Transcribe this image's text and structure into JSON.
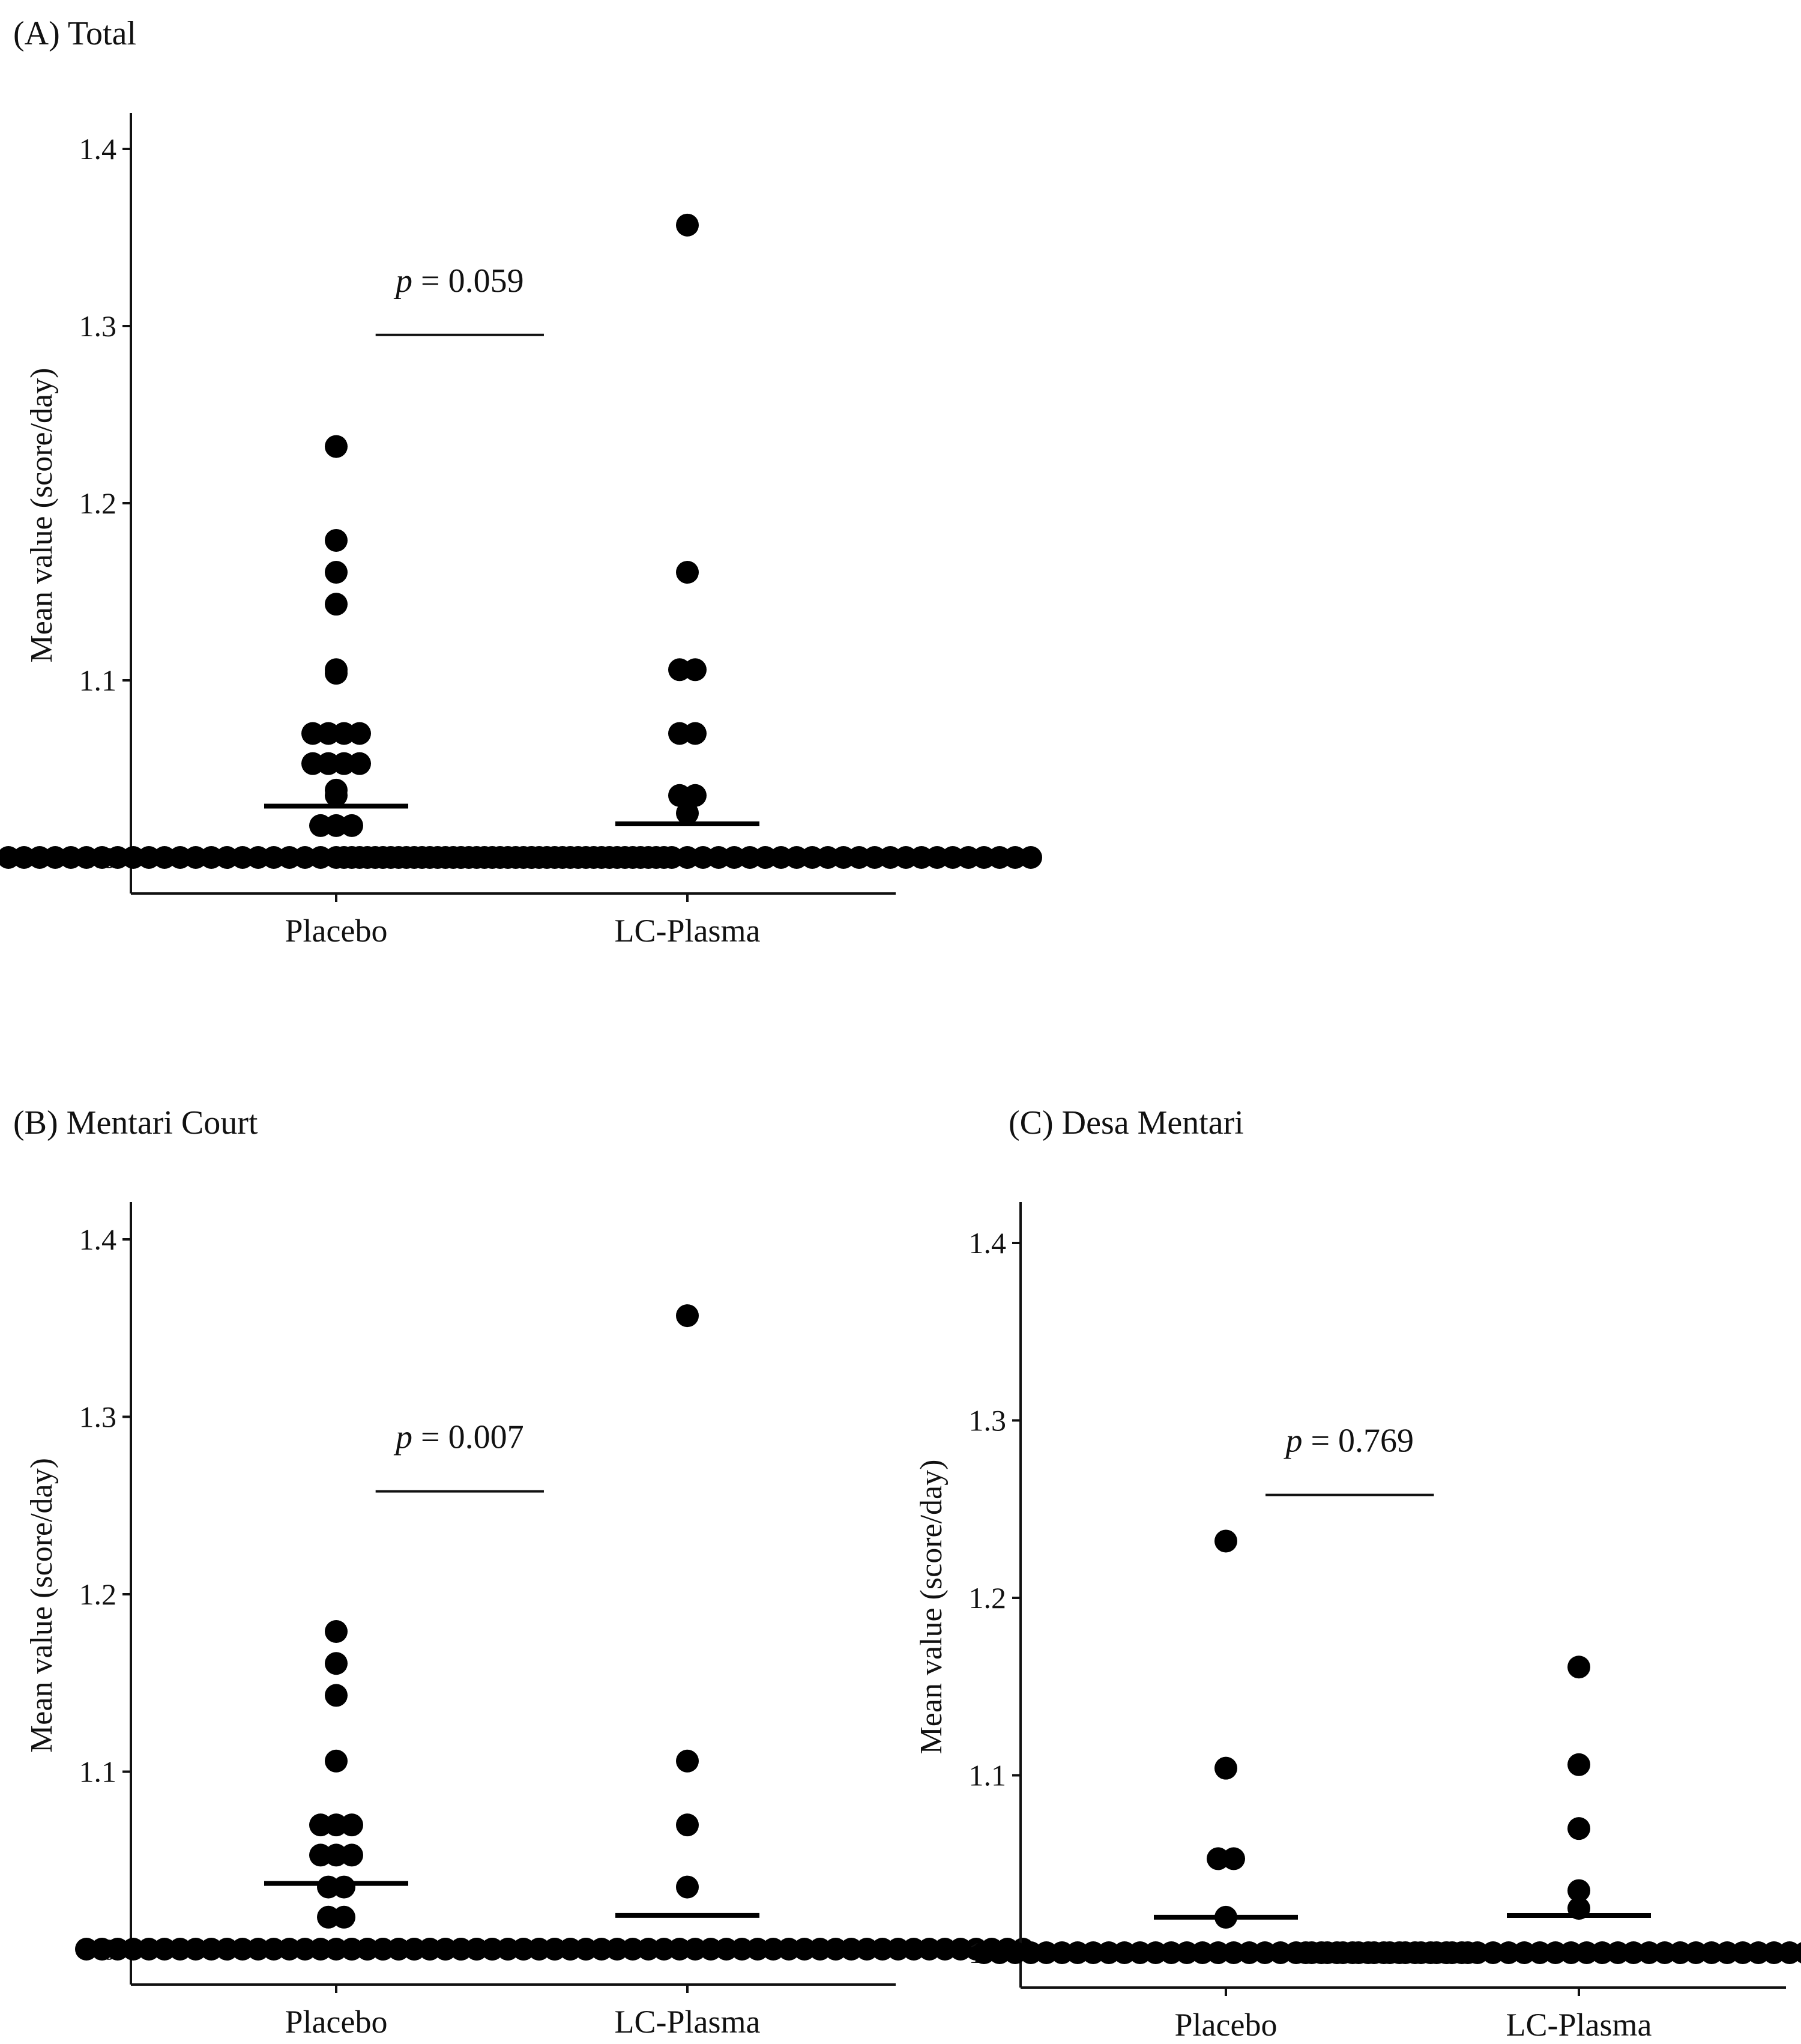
{
  "figure": {
    "panels": [
      {
        "label": "(A) Total"
      },
      {
        "label": "(B) Mentari Court"
      },
      {
        "label": "(C) Desa Mentari"
      }
    ]
  },
  "chart_data": [
    {
      "type": "scatter",
      "subtype": "dot-plot",
      "title": "(A) Total",
      "ylabel": "Mean value (score/day)",
      "ylim": [
        0.98,
        1.42
      ],
      "yticks": [
        "1.0",
        "1.1",
        "1.2",
        "1.3",
        "1.4"
      ],
      "categories": [
        "Placebo",
        "LC-Plasma"
      ],
      "annotation": {
        "prefix": "p",
        "text": " = 0.059",
        "y": 1.295
      },
      "colors": {
        "points": "#000000"
      },
      "series": [
        {
          "category": "Placebo",
          "mean": 1.029,
          "values": [
            1,
            1,
            1,
            1,
            1,
            1,
            1,
            1,
            1,
            1,
            1,
            1,
            1,
            1,
            1,
            1,
            1,
            1,
            1,
            1,
            1,
            1,
            1,
            1,
            1,
            1,
            1,
            1,
            1,
            1,
            1,
            1,
            1,
            1,
            1,
            1,
            1,
            1,
            1,
            1,
            1,
            1,
            1,
            1.018,
            1.018,
            1.018,
            1.035,
            1.038,
            1.053,
            1.053,
            1.053,
            1.053,
            1.07,
            1.07,
            1.07,
            1.07,
            1.104,
            1.106,
            1.143,
            1.161,
            1.179,
            1.232
          ]
        },
        {
          "category": "LC-Plasma",
          "mean": 1.019,
          "values": [
            1,
            1,
            1,
            1,
            1,
            1,
            1,
            1,
            1,
            1,
            1,
            1,
            1,
            1,
            1,
            1,
            1,
            1,
            1,
            1,
            1,
            1,
            1,
            1,
            1,
            1,
            1,
            1,
            1,
            1,
            1,
            1,
            1,
            1,
            1,
            1,
            1,
            1,
            1,
            1,
            1,
            1,
            1,
            1,
            1,
            1.025,
            1.035,
            1.035,
            1.07,
            1.07,
            1.106,
            1.106,
            1.161,
            1.357
          ]
        }
      ]
    },
    {
      "type": "scatter",
      "subtype": "dot-plot",
      "title": "(B) Mentari Court",
      "ylabel": "Mean value (score/day)",
      "ylim": [
        0.98,
        1.42
      ],
      "yticks": [
        "1.0",
        "1.1",
        "1.2",
        "1.3",
        "1.4"
      ],
      "categories": [
        "Placebo",
        "LC-Plasma"
      ],
      "annotation": {
        "prefix": "p",
        "text": " = 0.007",
        "y": 1.258
      },
      "colors": {
        "points": "#000000"
      },
      "series": [
        {
          "category": "Placebo",
          "mean": 1.037,
          "values": [
            1,
            1,
            1,
            1,
            1,
            1,
            1,
            1,
            1,
            1,
            1,
            1,
            1,
            1,
            1,
            1,
            1,
            1,
            1,
            1,
            1,
            1,
            1,
            1,
            1,
            1,
            1,
            1,
            1,
            1,
            1,
            1,
            1,
            1.018,
            1.018,
            1.035,
            1.035,
            1.053,
            1.053,
            1.053,
            1.07,
            1.07,
            1.07,
            1.106,
            1.143,
            1.161,
            1.179
          ]
        },
        {
          "category": "LC-Plasma",
          "mean": 1.019,
          "values": [
            1,
            1,
            1,
            1,
            1,
            1,
            1,
            1,
            1,
            1,
            1,
            1,
            1,
            1,
            1,
            1,
            1,
            1,
            1,
            1,
            1,
            1,
            1,
            1,
            1,
            1,
            1,
            1,
            1,
            1,
            1,
            1,
            1,
            1,
            1,
            1,
            1,
            1,
            1,
            1,
            1,
            1,
            1,
            1,
            1.035,
            1.07,
            1.106,
            1.357
          ]
        }
      ]
    },
    {
      "type": "scatter",
      "subtype": "dot-plot",
      "title": "(C) Desa Mentari",
      "ylabel": "Mean value (score/day)",
      "ylim": [
        0.98,
        1.42
      ],
      "yticks": [
        "1.0",
        "1.1",
        "1.2",
        "1.3",
        "1.4"
      ],
      "categories": [
        "Placebo",
        "LC-Plasma"
      ],
      "annotation": {
        "prefix": "p",
        "text": " = 0.769",
        "y": 1.258
      },
      "colors": {
        "points": "#000000"
      },
      "series": [
        {
          "category": "Placebo",
          "mean": 1.02,
          "values": [
            1,
            1,
            1,
            1,
            1,
            1,
            1,
            1,
            1,
            1,
            1,
            1,
            1,
            1,
            1,
            1,
            1,
            1,
            1,
            1,
            1,
            1,
            1,
            1,
            1,
            1,
            1,
            1,
            1,
            1,
            1,
            1,
            1.02,
            1.053,
            1.053,
            1.104,
            1.232
          ]
        },
        {
          "category": "LC-Plasma",
          "mean": 1.021,
          "values": [
            1,
            1,
            1,
            1,
            1,
            1,
            1,
            1,
            1,
            1,
            1,
            1,
            1,
            1,
            1,
            1,
            1,
            1,
            1,
            1,
            1,
            1,
            1,
            1,
            1,
            1,
            1,
            1,
            1,
            1,
            1,
            1,
            1,
            1,
            1,
            1,
            1.025,
            1.035,
            1.07,
            1.106,
            1.161
          ]
        }
      ]
    }
  ]
}
